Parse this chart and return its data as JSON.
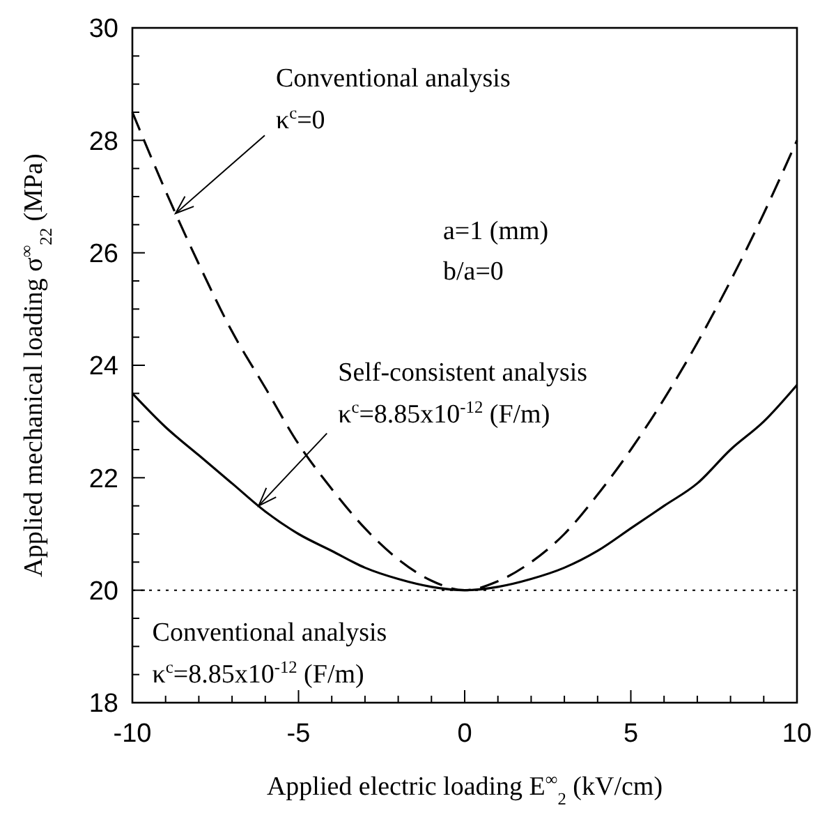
{
  "chart_data": {
    "type": "line",
    "xlabel": "Applied electric loading E$^{∞}$$_{2}$ (kV/cm)",
    "ylabel": "Applied mechanical loading σ$^{∞}$$_{22}$ (MPa)",
    "x": [
      -10,
      -9,
      -8,
      -7,
      -6,
      -5,
      -4,
      -3,
      -2,
      -1,
      0,
      1,
      2,
      3,
      4,
      5,
      6,
      7,
      8,
      9,
      10
    ],
    "series": [
      {
        "color": "#000000",
        "line_style": "dashed",
        "values": [
          28.5,
          27.1,
          25.8,
          24.6,
          23.6,
          22.6,
          21.8,
          21.1,
          20.55,
          20.17,
          20.0,
          20.16,
          20.5,
          21.0,
          21.7,
          22.5,
          23.4,
          24.4,
          25.5,
          26.7,
          28.0
        ]
      },
      {
        "color": "#000000",
        "line_style": "solid",
        "values": [
          23.5,
          22.9,
          22.4,
          21.9,
          21.4,
          21.0,
          20.7,
          20.4,
          20.2,
          20.06,
          20.0,
          20.06,
          20.2,
          20.4,
          20.7,
          21.1,
          21.5,
          21.9,
          22.5,
          23.0,
          23.65
        ]
      }
    ],
    "xlim": [
      -10,
      10
    ],
    "ylim": [
      18,
      30
    ],
    "xticks": [
      -10,
      {
        "value": -9,
        "label": null
      },
      {
        "value": -8,
        "label": null
      },
      {
        "value": -7,
        "label": null
      },
      {
        "value": -6,
        "label": null
      },
      -5,
      {
        "value": -4,
        "label": null
      },
      {
        "value": -3,
        "label": null
      },
      {
        "value": -2,
        "label": null
      },
      {
        "value": -1,
        "label": null
      },
      0,
      {
        "value": 1,
        "label": null
      },
      {
        "value": 2,
        "label": null
      },
      {
        "value": 3,
        "label": null
      },
      {
        "value": 4,
        "label": null
      },
      5,
      {
        "value": 6,
        "label": null
      },
      {
        "value": 7,
        "label": null
      },
      {
        "value": 8,
        "label": null
      },
      {
        "value": 9,
        "label": null
      },
      10
    ],
    "yticks": [
      18,
      {
        "value": 18.5,
        "label": null
      },
      {
        "value": 19,
        "label": null
      },
      {
        "value": 19.5,
        "label": null
      },
      20,
      {
        "value": 20.5,
        "label": null
      },
      {
        "value": 21,
        "label": null
      },
      {
        "value": 21.5,
        "label": null
      },
      22,
      {
        "value": 22.5,
        "label": null
      },
      {
        "value": 23,
        "label": null
      },
      {
        "value": 23.5,
        "label": null
      },
      24,
      {
        "value": 24.5,
        "label": null
      },
      {
        "value": 25,
        "label": null
      },
      {
        "value": 25.5,
        "label": null
      },
      26,
      {
        "value": 26.5,
        "label": null
      },
      {
        "value": 27,
        "label": null
      },
      {
        "value": 27.5,
        "label": null
      },
      28,
      {
        "value": 28.5,
        "label": null
      },
      {
        "value": 29,
        "label": null
      },
      {
        "value": 29.5,
        "label": null
      },
      30
    ],
    "ref_lines": [
      {
        "axis": "y",
        "value": 20,
        "line_style": "dotted"
      }
    ],
    "annotations": [
      {
        "text": "Conventional analysis\nκ$^{c}$=0",
        "x": -8.7,
        "y": 26.7
      },
      {
        "text": "Self-consistent analysis\nκ$^{c}$=8.85x10$^{-12}$ (F/m)",
        "x": -6.2,
        "y": 21.5
      },
      "a=1 (mm)\nb/a=0",
      "Conventional analysis\nκ$^{c}$=8.85x10$^{-12}$ (F/m)"
    ]
  }
}
